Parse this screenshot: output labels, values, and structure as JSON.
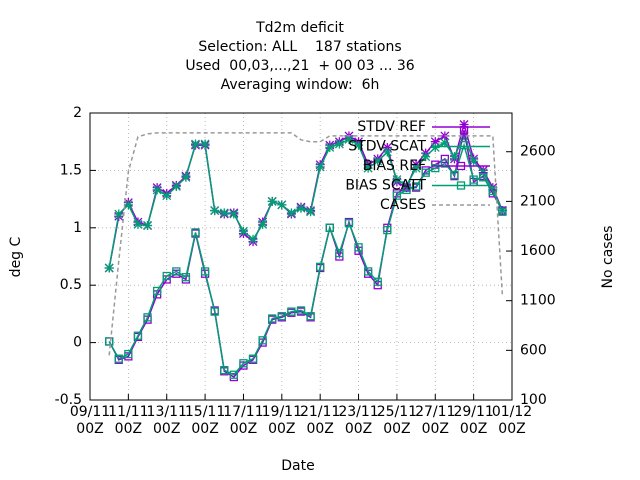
{
  "chart_data": {
    "type": "line",
    "title": "Td2m deficit",
    "subtitle": [
      "Selection: ALL    187 stations",
      "Used  00,03,...,21  + 00 03 ... 36",
      "Averaging window:  6h"
    ],
    "xlabel": "Date",
    "ylabel": "deg C",
    "y2label": "No cases",
    "xlim": [
      "09/11 00Z",
      "01/12 00Z"
    ],
    "xticks": [
      "09/11 00Z",
      "11/11 00Z",
      "13/11 00Z",
      "15/11 00Z",
      "17/11 00Z",
      "19/11 00Z",
      "21/11 00Z",
      "23/11 00Z",
      "25/11 00Z",
      "27/11 00Z",
      "29/11 00Z",
      "01/12 00Z"
    ],
    "ylim": [
      -0.5,
      2
    ],
    "yticks": [
      -0.5,
      0,
      0.5,
      1,
      1.5,
      2
    ],
    "y2lim": [
      100,
      2990
    ],
    "y2ticks": [
      100,
      600,
      1100,
      1600,
      2100,
      2600
    ],
    "grid": true,
    "legend": "top-right",
    "x": [
      "10/11 00Z",
      "10/11 12Z",
      "11/11 00Z",
      "11/11 12Z",
      "12/11 00Z",
      "12/11 12Z",
      "13/11 00Z",
      "13/11 12Z",
      "14/11 00Z",
      "14/11 12Z",
      "15/11 00Z",
      "15/11 12Z",
      "16/11 00Z",
      "16/11 12Z",
      "17/11 00Z",
      "17/11 12Z",
      "18/11 00Z",
      "18/11 12Z",
      "19/11 00Z",
      "19/11 12Z",
      "20/11 00Z",
      "20/11 12Z",
      "21/11 00Z",
      "21/11 12Z",
      "22/11 00Z",
      "22/11 12Z",
      "23/11 00Z",
      "23/11 12Z",
      "24/11 00Z",
      "24/11 12Z",
      "25/11 00Z",
      "25/11 12Z",
      "26/11 00Z",
      "26/11 12Z",
      "27/11 00Z",
      "27/11 12Z",
      "28/11 00Z",
      "28/11 12Z",
      "29/11 00Z",
      "29/11 12Z",
      "30/11 00Z",
      "30/11 12Z"
    ],
    "series": [
      {
        "name": "STDV REF",
        "color": "#9400d3",
        "marker": "star",
        "values": [
          0.65,
          1.1,
          1.22,
          1.05,
          1.02,
          1.35,
          1.3,
          1.37,
          1.45,
          1.72,
          1.72,
          1.15,
          1.12,
          1.13,
          0.95,
          0.88,
          1.05,
          1.23,
          1.2,
          1.12,
          1.18,
          1.15,
          1.55,
          1.72,
          1.75,
          1.8,
          1.75,
          1.55,
          1.6,
          1.7,
          1.4,
          1.35,
          1.55,
          1.65,
          1.75,
          1.8,
          1.6,
          1.9,
          1.6,
          1.5,
          1.35,
          1.15
        ]
      },
      {
        "name": "STDV SCAT",
        "color": "#009e73",
        "marker": "star",
        "values": [
          0.65,
          1.12,
          1.2,
          1.03,
          1.02,
          1.33,
          1.28,
          1.36,
          1.44,
          1.73,
          1.73,
          1.15,
          1.13,
          1.12,
          0.97,
          0.9,
          1.03,
          1.23,
          1.2,
          1.13,
          1.17,
          1.14,
          1.53,
          1.7,
          1.73,
          1.77,
          1.72,
          1.52,
          1.58,
          1.66,
          1.42,
          1.37,
          1.52,
          1.62,
          1.7,
          1.74,
          1.62,
          1.8,
          1.58,
          1.48,
          1.33,
          1.15
        ]
      },
      {
        "name": "BIAS REF",
        "color": "#9400d3",
        "marker": "square",
        "values": [
          0.01,
          -0.15,
          -0.12,
          0.05,
          0.2,
          0.42,
          0.55,
          0.6,
          0.55,
          0.95,
          0.6,
          0.28,
          -0.25,
          -0.3,
          -0.2,
          -0.15,
          0.0,
          0.2,
          0.22,
          0.26,
          0.27,
          0.22,
          0.65,
          1.0,
          0.75,
          1.05,
          0.8,
          0.6,
          0.5,
          1.0,
          1.3,
          1.35,
          1.35,
          1.5,
          1.55,
          1.6,
          1.45,
          1.85,
          1.4,
          1.45,
          1.3,
          1.15
        ]
      },
      {
        "name": "BIAS SCATT",
        "color": "#009e73",
        "marker": "square",
        "values": [
          0.01,
          -0.14,
          -0.1,
          0.06,
          0.22,
          0.45,
          0.58,
          0.62,
          0.57,
          0.96,
          0.62,
          0.27,
          -0.24,
          -0.28,
          -0.18,
          -0.14,
          0.02,
          0.21,
          0.23,
          0.27,
          0.28,
          0.23,
          0.66,
          1.0,
          0.78,
          1.04,
          0.83,
          0.62,
          0.53,
          0.98,
          1.28,
          1.33,
          1.36,
          1.48,
          1.52,
          1.56,
          1.46,
          1.72,
          1.42,
          1.44,
          1.32,
          1.14
        ]
      },
      {
        "name": "CASES",
        "color": "#999999",
        "dash": true,
        "axis": "y2",
        "values": [
          550,
          1500,
          2400,
          2750,
          2780,
          2790,
          2790,
          2790,
          2790,
          2790,
          2790,
          2790,
          2790,
          2790,
          2790,
          2790,
          2790,
          2790,
          2790,
          2790,
          2720,
          2700,
          2700,
          2760,
          2760,
          2760,
          2760,
          2760,
          2760,
          2760,
          2760,
          2760,
          2760,
          2760,
          2760,
          2760,
          2760,
          2760,
          2760,
          2760,
          2760,
          1150
        ]
      }
    ]
  }
}
